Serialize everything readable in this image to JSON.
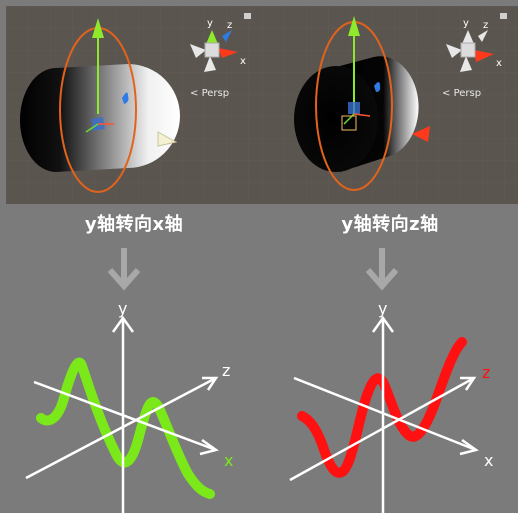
{
  "panels": [
    {
      "caption": "y轴转向x轴",
      "persp_label": "Persp",
      "gizmo": {
        "y_label": "y",
        "z_label": "z",
        "x_label": "x"
      },
      "plot": {
        "y_label": "y",
        "z_label": "z",
        "x_label": "x",
        "curve_color": "#7be81a"
      }
    },
    {
      "caption": "y轴转向z轴",
      "persp_label": "Persp",
      "gizmo": {
        "y_label": "y",
        "z_label": "z",
        "x_label": "x"
      },
      "plot": {
        "y_label": "y",
        "z_label": "z",
        "x_label": "x",
        "curve_color": "#ff1111"
      }
    }
  ],
  "colors": {
    "background": "#7b7b7b",
    "scene_bg": "#5b554f",
    "orbit": "#e2631c",
    "y_handle": "#8ee82c",
    "z_handle": "#2f7be6",
    "x_handle": "#ff3a1c"
  }
}
